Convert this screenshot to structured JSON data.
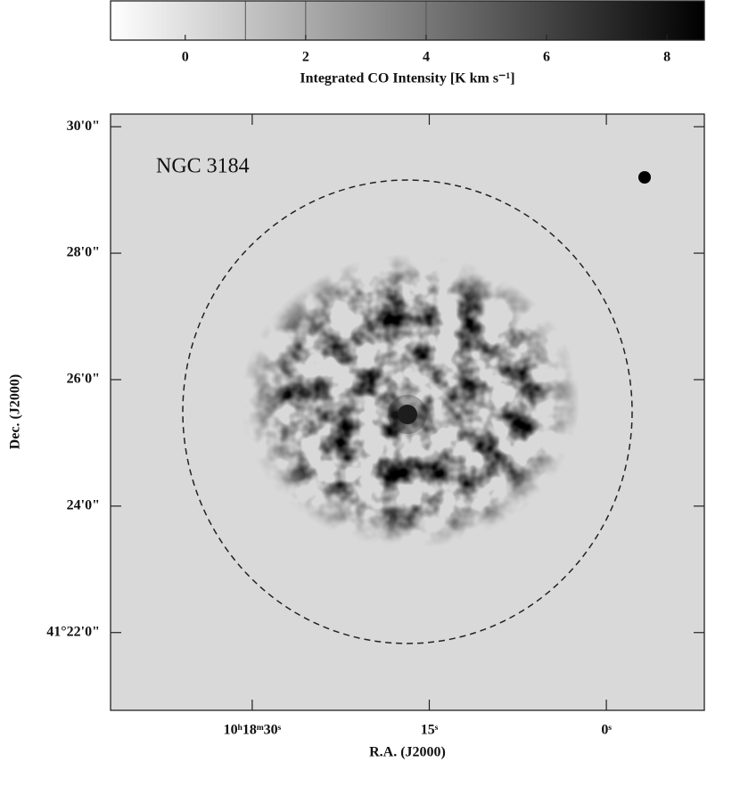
{
  "chart_data": {
    "type": "image",
    "title": "NGC 3184",
    "x_label": "R.A. (J2000)",
    "y_label": "Dec. (J2000)",
    "xlim": [
      42.0,
      -8.3
    ],
    "xticks": [
      {
        "value": 30,
        "label": "10ʰ18ᵐ30ˢ"
      },
      {
        "value": 15,
        "label": "15ˢ"
      },
      {
        "value": 0,
        "label": "0ˢ"
      }
    ],
    "ylim": [
      20.77,
      30.2
    ],
    "yticks": [
      {
        "value": 30,
        "label": "30'0\""
      },
      {
        "value": 28,
        "label": "28'0\""
      },
      {
        "value": 26,
        "label": "26'0\""
      },
      {
        "value": 24,
        "label": "24'0\""
      },
      {
        "value": 22,
        "label": "41°22'0\""
      }
    ],
    "background": "#d9d9d9",
    "colorbar": {
      "label": "Integrated CO Intensity [K km s⁻¹]",
      "lim": [
        -1.24,
        8.62
      ],
      "ticks": [
        0,
        2,
        4,
        6,
        8
      ],
      "colors": [
        "#ffffff",
        "#000000"
      ],
      "contour_levels": [
        1,
        2,
        4
      ]
    }
  }
}
